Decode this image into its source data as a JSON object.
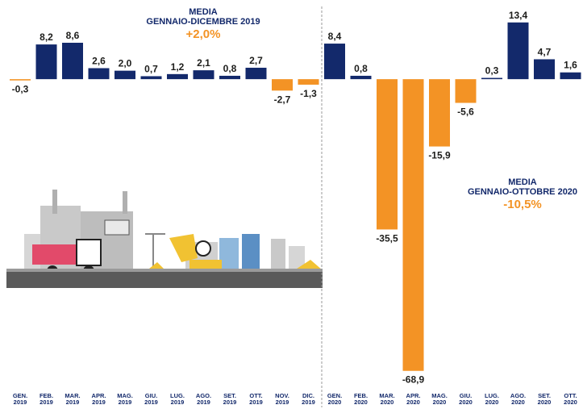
{
  "chart_data": {
    "type": "bar",
    "categories": [
      "GEN. 2019",
      "FEB. 2019",
      "MAR. 2019",
      "APR. 2019",
      "MAG. 2019",
      "GIU. 2019",
      "LUG. 2019",
      "AGO. 2019",
      "SET. 2019",
      "OTT. 2019",
      "NOV. 2019",
      "DIC. 2019",
      "GEN. 2020",
      "FEB. 2020",
      "MAR. 2020",
      "APR. 2020",
      "MAG. 2020",
      "GIU. 2020",
      "LUG. 2020",
      "AGO. 2020",
      "SET. 2020",
      "OTT. 2020"
    ],
    "values": [
      -0.3,
      8.2,
      8.6,
      2.6,
      2.0,
      0.7,
      1.2,
      2.1,
      0.8,
      2.7,
      -2.7,
      -1.3,
      8.4,
      0.8,
      -35.5,
      -68.9,
      -15.9,
      -5.6,
      0.3,
      13.4,
      4.7,
      1.6
    ],
    "value_labels": [
      "-0,3",
      "8,2",
      "8,6",
      "2,6",
      "2,0",
      "0,7",
      "1,2",
      "2,1",
      "0,8",
      "2,7",
      "-2,7",
      "-1,3",
      "8,4",
      "0,8",
      "-35,5",
      "-68,9",
      "-15,9",
      "-5,6",
      "0,3",
      "13,4",
      "4,7",
      "1,6"
    ],
    "positive_color": "#13296b",
    "negative_color": "#f39325",
    "ylim": [
      -72,
      18.7
    ],
    "annotations": [
      {
        "line1": "MEDIA",
        "line2": "GENNAIO-DICEMBRE 2019",
        "value": "+2,0%"
      },
      {
        "line1": "MEDIA",
        "line2": "GENNAIO-OTTOBRE 2020",
        "value": "-10,5%"
      }
    ]
  }
}
